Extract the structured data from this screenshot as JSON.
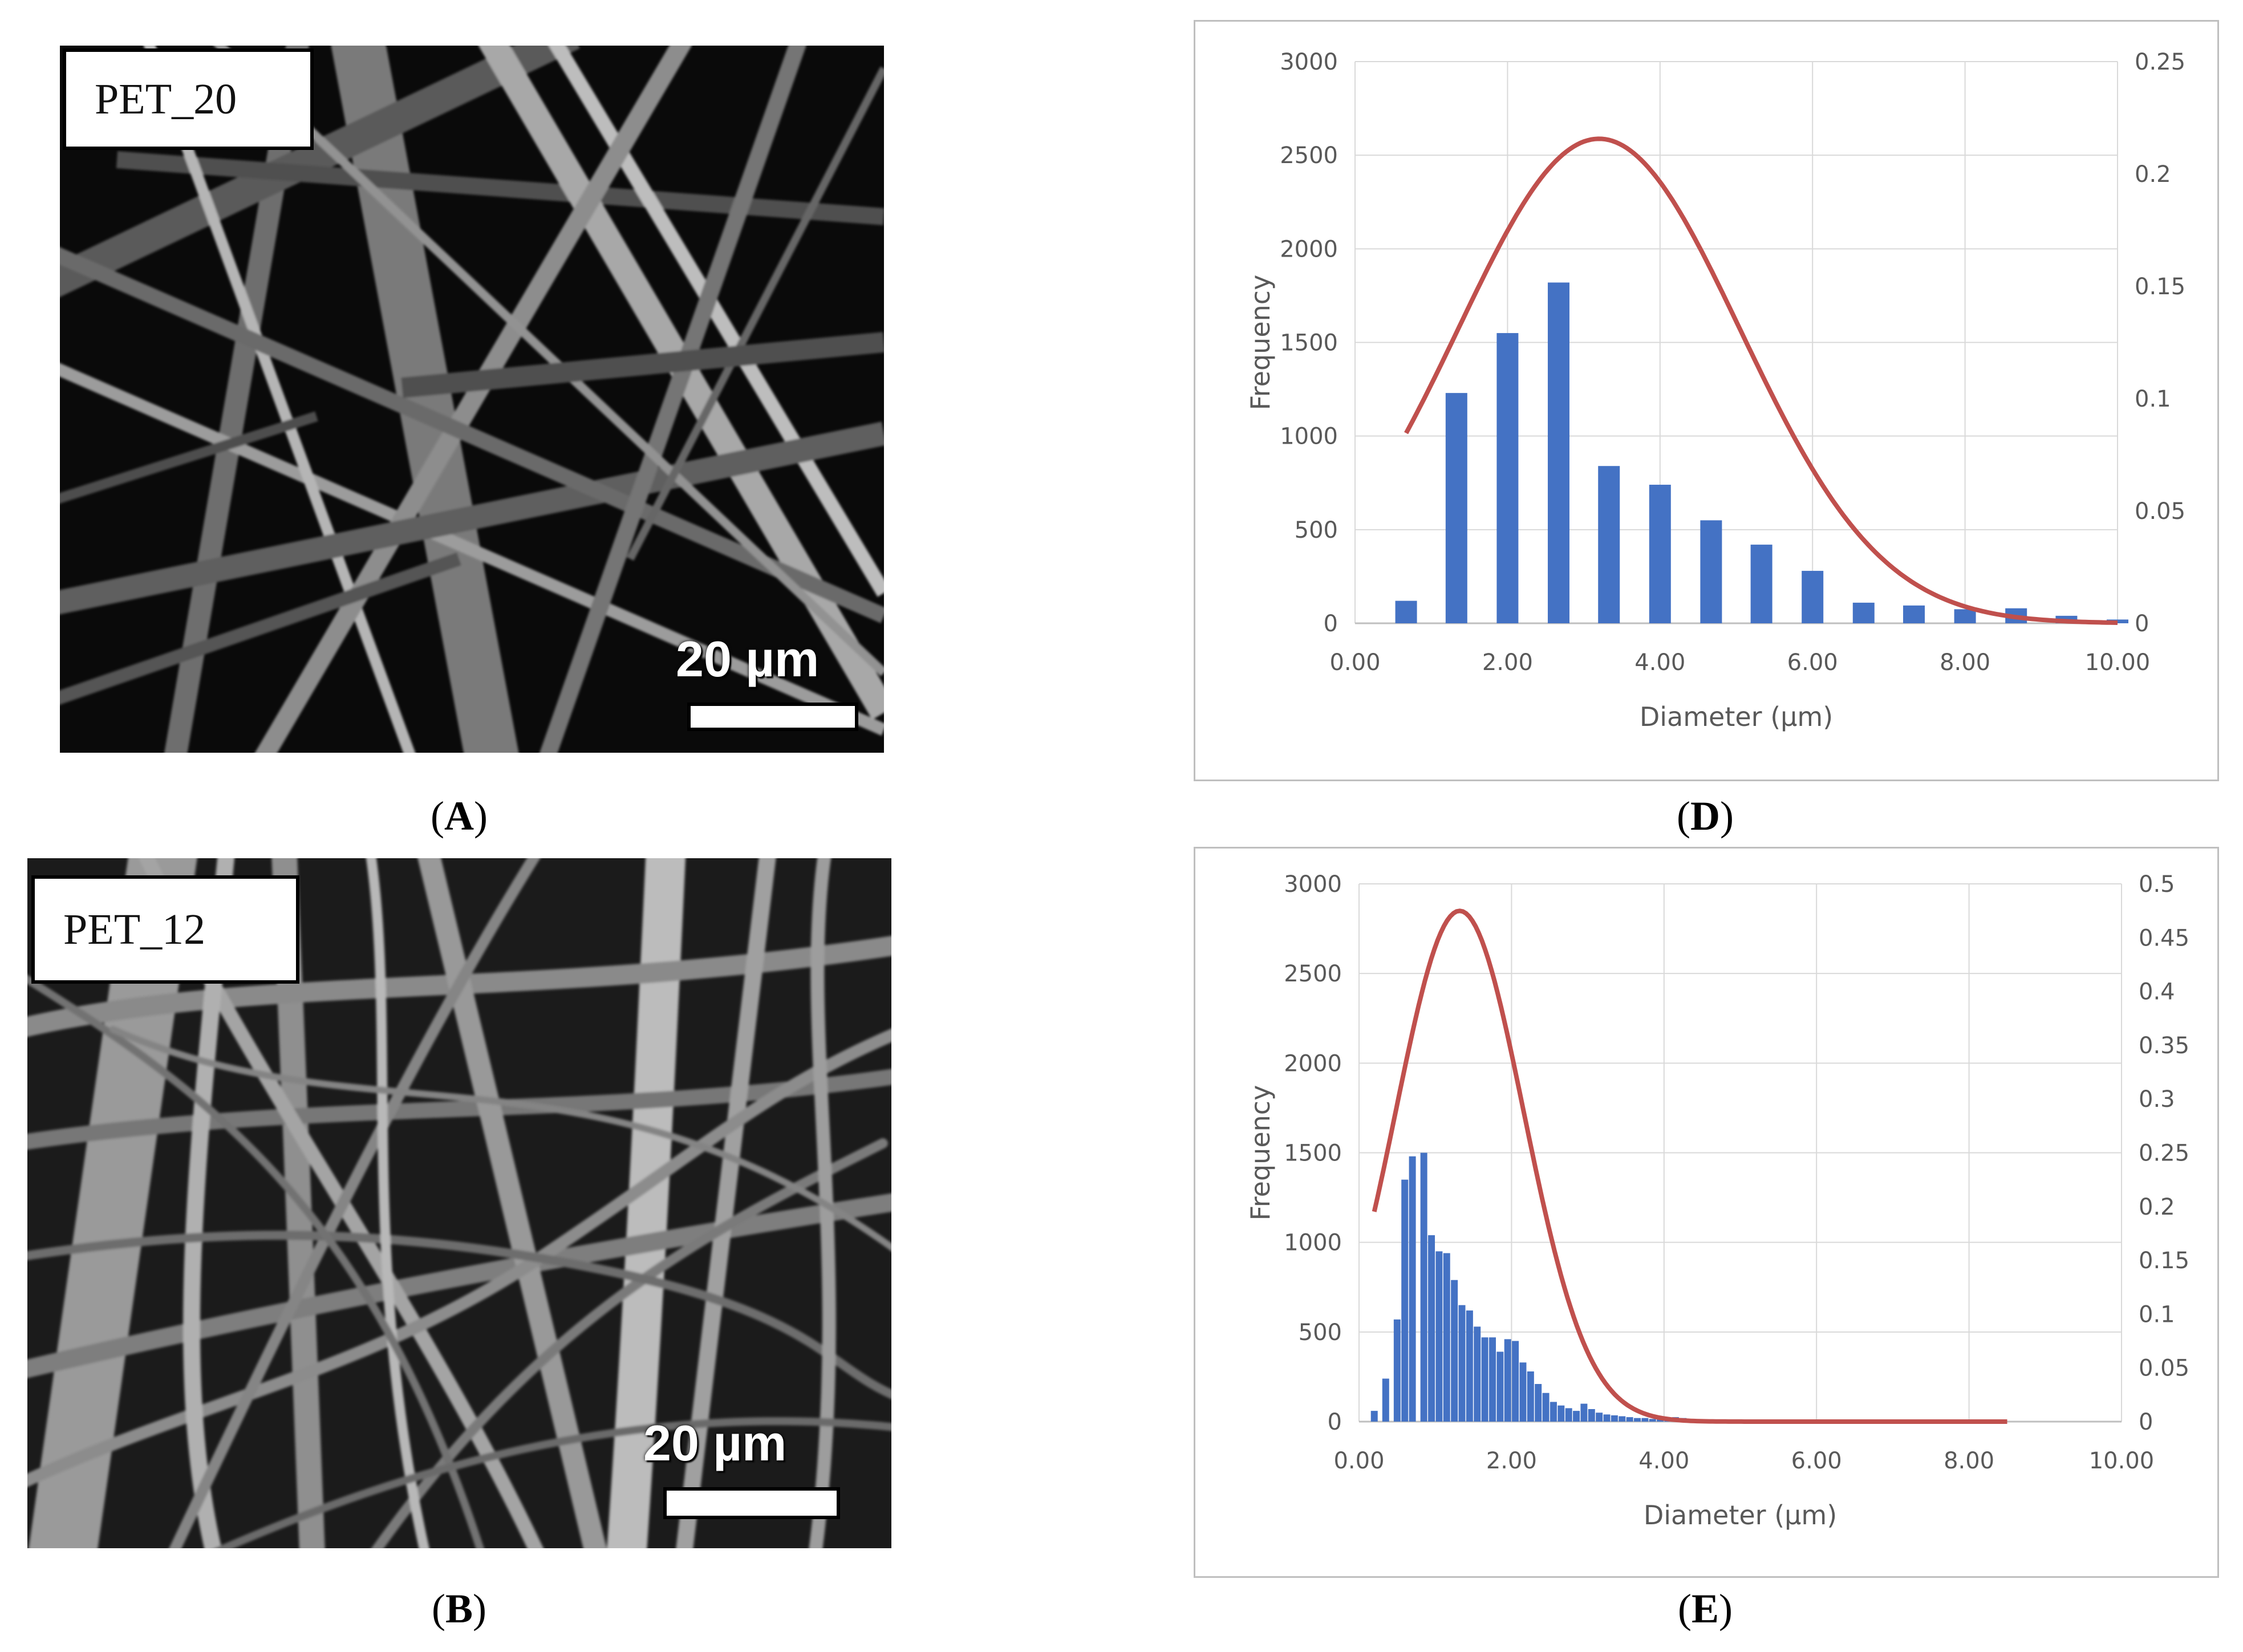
{
  "panels": {
    "A": {
      "caption_letter": "A",
      "sample_label": "PET_20",
      "scale_text": "20 µm"
    },
    "B": {
      "caption_letter": "B",
      "sample_label": "PET_12",
      "scale_text": "20 µm"
    },
    "D": {
      "caption_letter": "D"
    },
    "E": {
      "caption_letter": "E"
    }
  },
  "colors": {
    "bar": "#4472C4",
    "curve": "#C0504D",
    "grid": "#d9d9d9",
    "axis_text": "#595959"
  },
  "chart_data": [
    {
      "id": "D",
      "type": "bar",
      "title": "",
      "xlabel": "Diameter (µm)",
      "ylabel": "Frequency",
      "y2label": "",
      "xlim": [
        0,
        10
      ],
      "ylim": [
        0,
        3000
      ],
      "y2lim": [
        0,
        0.25
      ],
      "xticks": [
        "0.00",
        "2.00",
        "4.00",
        "6.00",
        "8.00",
        "10.00"
      ],
      "yticks": [
        "0",
        "500",
        "1000",
        "1500",
        "2000",
        "2500",
        "3000"
      ],
      "y2ticks": [
        "0",
        "0.05",
        "0.1",
        "0.15",
        "0.2",
        "0.25"
      ],
      "grid": true,
      "series": [
        {
          "type": "bar",
          "x": [
            0.67,
            1.33,
            2.0,
            2.67,
            3.33,
            4.0,
            4.67,
            5.33,
            6.0,
            6.67,
            7.33,
            8.0,
            8.67,
            9.33,
            10.0
          ],
          "values": [
            120,
            1230,
            1550,
            1820,
            840,
            740,
            550,
            420,
            280,
            110,
            95,
            75,
            80,
            40,
            20
          ]
        },
        {
          "type": "line",
          "axis": "right",
          "distribution": "normal",
          "mean": 3.2,
          "sd": 1.85,
          "x_range": [
            0.67,
            10.0
          ]
        }
      ]
    },
    {
      "id": "E",
      "type": "bar",
      "title": "",
      "xlabel": "Diameter (µm)",
      "ylabel": "Frequency",
      "y2label": "",
      "xlim": [
        0,
        10
      ],
      "ylim": [
        0,
        3000
      ],
      "y2lim": [
        0,
        0.5
      ],
      "xticks": [
        "0.00",
        "2.00",
        "4.00",
        "6.00",
        "8.00",
        "10.00"
      ],
      "yticks": [
        "0",
        "500",
        "1000",
        "1500",
        "2000",
        "2500",
        "3000"
      ],
      "y2ticks": [
        "0",
        "0.05",
        "0.1",
        "0.15",
        "0.2",
        "0.25",
        "0.3",
        "0.35",
        "0.4",
        "0.45",
        "0.5"
      ],
      "grid": true,
      "series": [
        {
          "type": "bar",
          "x": [
            0.2,
            0.35,
            0.5,
            0.6,
            0.7,
            0.85,
            0.95,
            1.05,
            1.15,
            1.25,
            1.35,
            1.45,
            1.55,
            1.65,
            1.75,
            1.85,
            1.95,
            2.05,
            2.15,
            2.25,
            2.35,
            2.45,
            2.55,
            2.65,
            2.75,
            2.85,
            2.95,
            3.05,
            3.15,
            3.25,
            3.35,
            3.45,
            3.55,
            3.65,
            3.75,
            3.85,
            3.95,
            4.05,
            4.15,
            4.25,
            4.35
          ],
          "values": [
            60,
            240,
            570,
            1350,
            1480,
            1500,
            1040,
            950,
            940,
            790,
            650,
            620,
            530,
            470,
            470,
            390,
            460,
            450,
            330,
            280,
            210,
            160,
            110,
            90,
            75,
            60,
            100,
            70,
            50,
            40,
            35,
            30,
            25,
            20,
            20,
            15,
            15,
            10,
            25,
            20,
            10
          ]
        },
        {
          "type": "line",
          "axis": "right",
          "distribution": "normal",
          "mean": 1.32,
          "sd": 0.84,
          "x_range": [
            0.2,
            8.5
          ]
        }
      ]
    }
  ]
}
